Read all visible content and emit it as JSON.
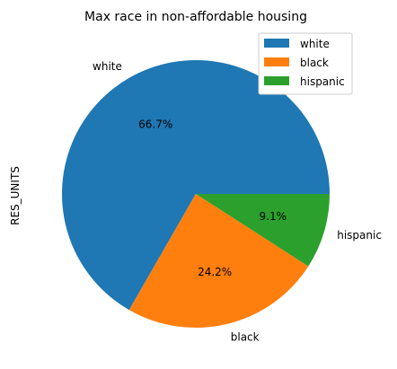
{
  "chart_data": {
    "type": "pie",
    "title": "Max race in non-affordable housing",
    "ylabel": "RES_UNITS",
    "legend_position": "top-right",
    "slices": [
      {
        "label": "white",
        "percent": 66.7,
        "percent_label": "66.7%",
        "color": "#1f77b4"
      },
      {
        "label": "black",
        "percent": 24.2,
        "percent_label": "24.2%",
        "color": "#ff7f0e"
      },
      {
        "label": "hispanic",
        "percent": 9.1,
        "percent_label": "9.1%",
        "color": "#2ca02c"
      }
    ]
  }
}
